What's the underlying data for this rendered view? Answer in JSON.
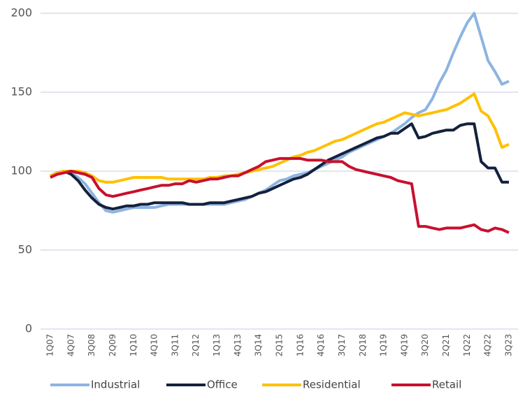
{
  "chart_data": {
    "type": "line",
    "categories": [
      "1Q07",
      null,
      null,
      "4Q07",
      null,
      null,
      "3Q08",
      null,
      null,
      "2Q09",
      null,
      null,
      "1Q10",
      null,
      null,
      "4Q10",
      null,
      null,
      "3Q11",
      null,
      null,
      "2Q12",
      null,
      null,
      "1Q13",
      null,
      null,
      "4Q13",
      null,
      null,
      "3Q14",
      null,
      null,
      "2Q15",
      null,
      null,
      "1Q16",
      null,
      null,
      "4Q16",
      null,
      null,
      "3Q17",
      null,
      null,
      "2Q18",
      null,
      null,
      "1Q19",
      null,
      null,
      "4Q19",
      null,
      null,
      "3Q20",
      null,
      null,
      "2Q21",
      null,
      null,
      "1Q22",
      null,
      null,
      "4Q22",
      null,
      null,
      "3Q23"
    ],
    "series": [
      {
        "name": "Industrial",
        "color": "#8db4e2",
        "values": [
          97,
          99,
          100,
          99,
          96,
          92,
          86,
          80,
          75,
          74,
          75,
          76,
          77,
          77,
          77,
          77,
          78,
          79,
          79,
          79,
          79,
          79,
          79,
          79,
          79,
          79,
          80,
          81,
          82,
          84,
          86,
          88,
          91,
          94,
          95,
          97,
          98,
          99,
          101,
          103,
          105,
          107,
          109,
          112,
          114,
          116,
          118,
          120,
          122,
          124,
          127,
          130,
          134,
          137,
          139,
          146,
          156,
          164,
          175,
          185,
          194,
          200,
          185,
          170,
          163,
          155,
          157
        ]
      },
      {
        "name": "Office",
        "color": "#14213d",
        "values": [
          97,
          99,
          100,
          98,
          94,
          88,
          83,
          79,
          77,
          76,
          77,
          78,
          78,
          79,
          79,
          80,
          80,
          80,
          80,
          80,
          79,
          79,
          79,
          80,
          80,
          80,
          81,
          82,
          83,
          84,
          86,
          87,
          89,
          91,
          93,
          95,
          96,
          98,
          101,
          104,
          107,
          109,
          111,
          113,
          115,
          117,
          119,
          121,
          122,
          124,
          124,
          127,
          130,
          121,
          122,
          124,
          125,
          126,
          126,
          129,
          130,
          130,
          106,
          102,
          102,
          93,
          93
        ]
      },
      {
        "name": "Residential",
        "color": "#ffc000",
        "values": [
          97,
          99,
          100,
          100,
          100,
          99,
          97,
          94,
          93,
          93,
          94,
          95,
          96,
          96,
          96,
          96,
          96,
          95,
          95,
          95,
          95,
          95,
          95,
          96,
          96,
          97,
          97,
          98,
          99,
          100,
          101,
          102,
          103,
          105,
          107,
          109,
          110,
          112,
          113,
          115,
          117,
          119,
          120,
          122,
          124,
          126,
          128,
          130,
          131,
          133,
          135,
          137,
          136,
          135,
          136,
          137,
          138,
          139,
          141,
          143,
          146,
          149,
          138,
          135,
          127,
          115,
          117
        ]
      },
      {
        "name": "Retail",
        "color": "#c8102e",
        "values": [
          96,
          98,
          99,
          100,
          99,
          98,
          96,
          89,
          85,
          84,
          85,
          86,
          87,
          88,
          89,
          90,
          91,
          91,
          92,
          92,
          94,
          93,
          94,
          95,
          95,
          96,
          97,
          97,
          99,
          101,
          103,
          106,
          107,
          108,
          108,
          108,
          108,
          107,
          107,
          107,
          106,
          106,
          106,
          103,
          101,
          100,
          99,
          98,
          97,
          96,
          94,
          93,
          92,
          65,
          65,
          64,
          63,
          64,
          64,
          64,
          65,
          66,
          63,
          62,
          64,
          63,
          61
        ]
      }
    ],
    "ylim": [
      0,
      200
    ],
    "yticks": [
      0,
      50,
      100,
      150,
      200
    ],
    "grid": true,
    "legend": "bottom"
  }
}
